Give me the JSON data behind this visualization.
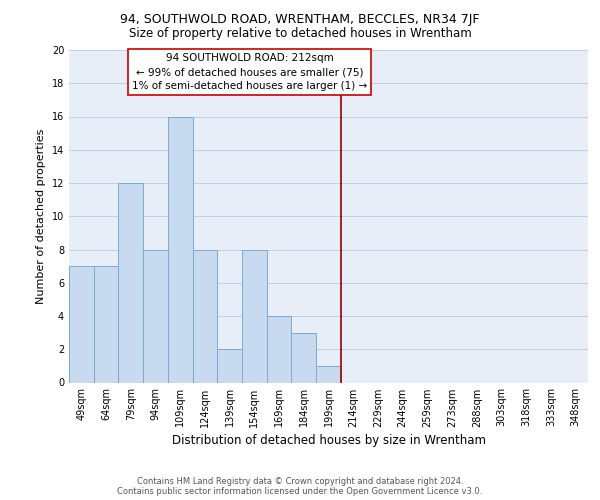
{
  "title": "94, SOUTHWOLD ROAD, WRENTHAM, BECCLES, NR34 7JF",
  "subtitle": "Size of property relative to detached houses in Wrentham",
  "xlabel": "Distribution of detached houses by size in Wrentham",
  "ylabel": "Number of detached properties",
  "bar_labels": [
    "49sqm",
    "64sqm",
    "79sqm",
    "94sqm",
    "109sqm",
    "124sqm",
    "139sqm",
    "154sqm",
    "169sqm",
    "184sqm",
    "199sqm",
    "214sqm",
    "229sqm",
    "244sqm",
    "259sqm",
    "273sqm",
    "288sqm",
    "303sqm",
    "318sqm",
    "333sqm",
    "348sqm"
  ],
  "bar_values": [
    7,
    7,
    12,
    8,
    16,
    8,
    2,
    8,
    4,
    3,
    1,
    0,
    0,
    0,
    0,
    0,
    0,
    0,
    0,
    0,
    0
  ],
  "bar_color": "#c8daf0",
  "bar_edge_color": "#7aabcf",
  "grid_color": "#c0cfe0",
  "background_color": "#e8eef8",
  "vline_color": "#990000",
  "annotation_text": "94 SOUTHWOLD ROAD: 212sqm\n← 99% of detached houses are smaller (75)\n1% of semi-detached houses are larger (1) →",
  "annotation_box_color": "#ffffff",
  "annotation_box_edge_color": "#cc0000",
  "ylim": [
    0,
    20
  ],
  "yticks": [
    0,
    2,
    4,
    6,
    8,
    10,
    12,
    14,
    16,
    18,
    20
  ],
  "footer_text": "Contains HM Land Registry data © Crown copyright and database right 2024.\nContains public sector information licensed under the Open Government Licence v3.0.",
  "title_fontsize": 9,
  "subtitle_fontsize": 8.5,
  "xlabel_fontsize": 8.5,
  "ylabel_fontsize": 8,
  "tick_fontsize": 7,
  "annotation_fontsize": 7.5,
  "footer_fontsize": 6
}
